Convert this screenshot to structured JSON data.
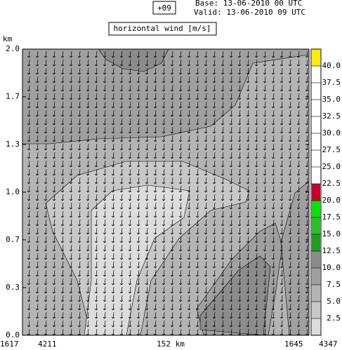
{
  "chart_data": {
    "type": "contour",
    "title": "horizontal wind [m/s]",
    "lead": "+09",
    "base": "Base: 13-06-2010  00 UTC",
    "valid": "Valid: 13-06-2010  09 UTC",
    "ylabel": "km",
    "ylim": [
      0,
      2
    ],
    "yticks": [
      {
        "value": 0,
        "label": "0.0"
      },
      {
        "value": 0.333,
        "label": "0.3"
      },
      {
        "value": 0.667,
        "label": "0.7"
      },
      {
        "value": 1,
        "label": "1.0"
      },
      {
        "value": 1.333,
        "label": "1.3"
      },
      {
        "value": 1.667,
        "label": "1.7"
      },
      {
        "value": 2,
        "label": "2.0"
      }
    ],
    "bottom_labels": [
      "1617",
      "4211",
      "152 km",
      "1645",
      "4347"
    ],
    "colorbar_lim": [
      0,
      42.5
    ],
    "colorbar_ticks": [
      2.5,
      {
        "value": 5,
        "label": "5.0"
      },
      7.5,
      {
        "value": 10,
        "label": "10.0"
      },
      12.5,
      {
        "value": 15,
        "label": "15.0"
      },
      17.5,
      {
        "value": 20,
        "label": "20.0"
      },
      22.5,
      {
        "value": 25,
        "label": "25.0"
      },
      27.5,
      {
        "value": 30,
        "label": "30.0"
      },
      32.5,
      {
        "value": 35,
        "label": "35.0"
      },
      37.5,
      {
        "value": 40,
        "label": "40.0"
      }
    ],
    "colorbar_colors": [
      "#dcdcdc",
      "#c8c8c8",
      "#b4b4b4",
      "#a0a0a0",
      "#8c8c8c",
      "#1e9e1e",
      "#28c028",
      "#00e400",
      "#c80028",
      "#ffffff",
      "#ffffff",
      "#ffffff",
      "#ffffff",
      "#ffffff",
      "#ffffff",
      "#ffffff",
      "#ffee00"
    ]
  }
}
